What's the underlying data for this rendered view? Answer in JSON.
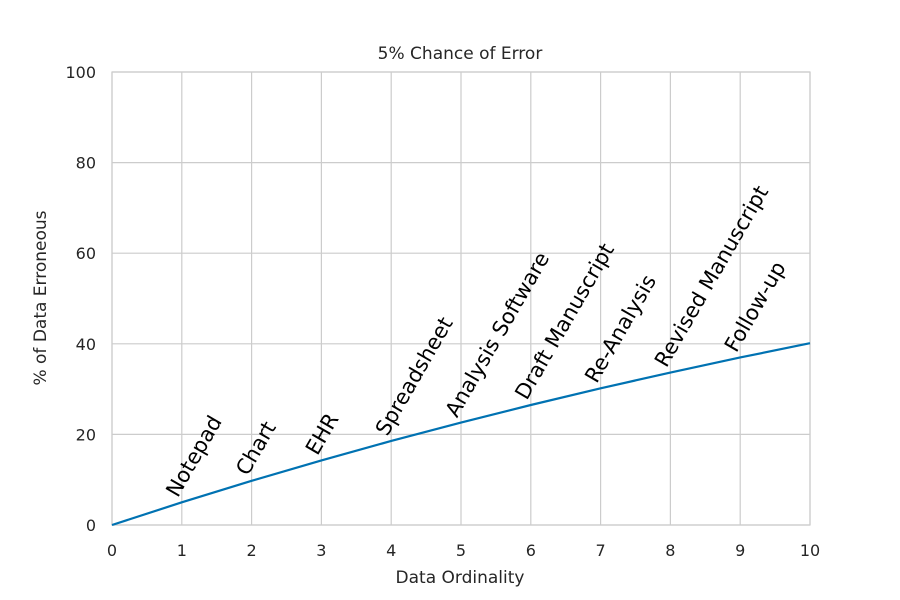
{
  "chart_data": {
    "type": "line",
    "title": "5% Chance of Error",
    "xlabel": "Data Ordinality",
    "ylabel": "% of Data Erroneous",
    "xlim": [
      0,
      10
    ],
    "ylim": [
      0,
      100
    ],
    "x_ticks": [
      "0",
      "1",
      "2",
      "3",
      "4",
      "5",
      "6",
      "7",
      "8",
      "9",
      "10"
    ],
    "y_ticks": [
      "0",
      "20",
      "40",
      "60",
      "80",
      "100"
    ],
    "grid": true,
    "series": [
      {
        "color": "#0072b2",
        "x": [
          0,
          1,
          2,
          3,
          4,
          5,
          6,
          7,
          8,
          9,
          10
        ],
        "y": [
          0,
          5.0,
          9.75,
          14.26,
          18.55,
          22.62,
          26.49,
          30.17,
          33.66,
          36.98,
          40.13
        ]
      }
    ],
    "annotations": [
      {
        "text": "Notepad",
        "x": 1
      },
      {
        "text": "Chart",
        "x": 2
      },
      {
        "text": "EHR",
        "x": 3
      },
      {
        "text": "Spreadsheet",
        "x": 4
      },
      {
        "text": "Analysis Software",
        "x": 5
      },
      {
        "text": "Draft Manuscript",
        "x": 6
      },
      {
        "text": "Re-Analysis",
        "x": 7
      },
      {
        "text": "Revised Manuscript",
        "x": 8
      },
      {
        "text": "Follow-up",
        "x": 9
      }
    ]
  }
}
